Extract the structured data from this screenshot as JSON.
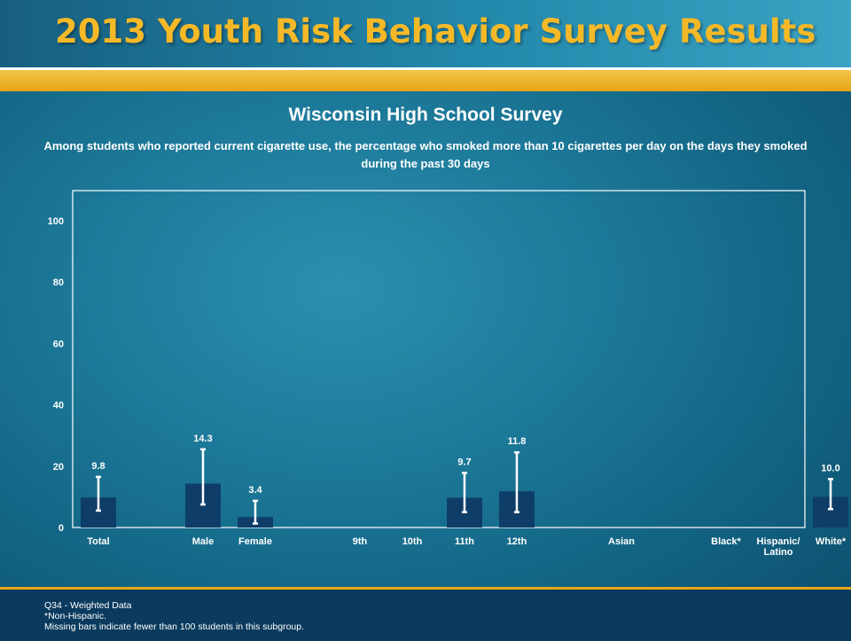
{
  "header": {
    "title": "2013 Youth Risk Behavior Survey Results"
  },
  "survey_title": "Wisconsin High School Survey",
  "subtitle": "Among students who reported current cigarette use, the percentage who smoked more than 10 cigarettes per day on the days they smoked during the past 30 days",
  "footer": {
    "line1": "Q34 - Weighted Data",
    "line2": "*Non-Hispanic.",
    "line3": "Missing bars indicate fewer than 100 students in this subgroup."
  },
  "colors": {
    "title_gold": "#f5b928",
    "bar": "#0e3e68",
    "error_bar": "#ffffff"
  },
  "chart_data": {
    "type": "bar",
    "categories": [
      "Total",
      "Male",
      "Female",
      "9th",
      "10th",
      "11th",
      "12th",
      "Asian",
      "Black*",
      "Hispanic/\nLatino",
      "White*"
    ],
    "values": [
      9.8,
      14.3,
      3.4,
      null,
      null,
      9.7,
      11.8,
      null,
      null,
      null,
      10.0
    ],
    "value_labels": [
      "9.8",
      "14.3",
      "3.4",
      "",
      "",
      "9.7",
      "11.8",
      "",
      "",
      "",
      "10.0"
    ],
    "ci_lower": [
      5.5,
      7.5,
      1.3,
      null,
      null,
      5.0,
      5.0,
      null,
      null,
      null,
      6.0
    ],
    "ci_upper": [
      16.5,
      25.5,
      8.7,
      null,
      null,
      17.8,
      24.5,
      null,
      null,
      null,
      15.8
    ],
    "group_gap_after": [
      0,
      2,
      6,
      7
    ],
    "ylim": [
      0,
      100
    ],
    "yticks": [
      0,
      20,
      40,
      60,
      80,
      100
    ],
    "xlabel": "",
    "ylabel": "",
    "grid": false,
    "legend": "none"
  }
}
